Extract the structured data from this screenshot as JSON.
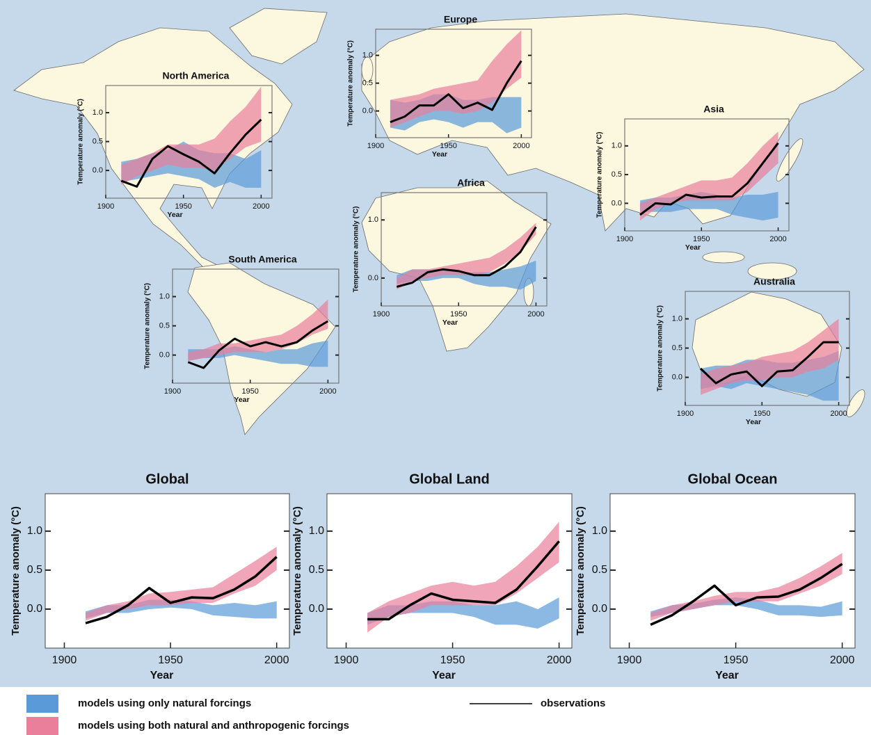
{
  "chart_data": [
    {
      "type": "line",
      "title": "North America",
      "ylabel": "Temperature anomaly (°C)",
      "xlabel": "Year",
      "x": [
        1910,
        1920,
        1930,
        1940,
        1950,
        1960,
        1970,
        1980,
        1990,
        2000
      ],
      "xlim": [
        1900,
        2007
      ],
      "ylim": [
        -0.48,
        1.47
      ],
      "xticks": [
        1900,
        1950,
        2000
      ],
      "yticks": [
        {
          "value": 0,
          "label": "0.0"
        },
        0.5,
        {
          "value": 1,
          "label": "1.0"
        }
      ],
      "observations": [
        -0.18,
        -0.28,
        0.2,
        0.42,
        0.28,
        0.15,
        -0.05,
        0.3,
        0.62,
        0.88
      ],
      "natural": {
        "low": [
          -0.2,
          -0.15,
          -0.1,
          -0.05,
          -0.1,
          -0.15,
          -0.3,
          -0.2,
          -0.3,
          -0.3
        ],
        "high": [
          0.15,
          0.2,
          0.3,
          0.35,
          0.5,
          0.35,
          0.3,
          0.3,
          0.2,
          0.35
        ]
      },
      "anthropogenic": {
        "low": [
          -0.25,
          -0.1,
          0.0,
          0.1,
          0.05,
          0.05,
          0.0,
          0.2,
          0.4,
          0.5
        ],
        "high": [
          0.1,
          0.2,
          0.3,
          0.45,
          0.45,
          0.45,
          0.55,
          0.85,
          1.1,
          1.45
        ]
      }
    },
    {
      "type": "line",
      "title": "Europe",
      "ylabel": "Temperature anomaly (°C)",
      "xlabel": "Year",
      "x": [
        1910,
        1920,
        1930,
        1940,
        1950,
        1960,
        1970,
        1980,
        1990,
        2000
      ],
      "xlim": [
        1900,
        2007
      ],
      "ylim": [
        -0.48,
        1.47
      ],
      "xticks": [
        1900,
        1950,
        2000
      ],
      "yticks": [
        {
          "value": 0,
          "label": "0.0"
        },
        0.5,
        {
          "value": 1,
          "label": "1.0"
        }
      ],
      "observations": [
        -0.2,
        -0.1,
        0.1,
        0.1,
        0.3,
        0.05,
        0.15,
        0.02,
        0.5,
        0.9
      ],
      "natural": {
        "low": [
          -0.3,
          -0.35,
          -0.2,
          -0.15,
          -0.2,
          -0.3,
          -0.2,
          -0.2,
          -0.4,
          -0.3
        ],
        "high": [
          0.2,
          0.15,
          0.2,
          0.3,
          0.3,
          0.2,
          0.2,
          0.25,
          0.25,
          0.25
        ]
      },
      "anthropogenic": {
        "low": [
          -0.3,
          -0.2,
          -0.1,
          0.0,
          0.0,
          -0.05,
          0.0,
          0.15,
          0.4,
          0.6
        ],
        "high": [
          0.2,
          0.25,
          0.3,
          0.4,
          0.45,
          0.5,
          0.55,
          0.9,
          1.2,
          1.45
        ]
      }
    },
    {
      "type": "line",
      "title": "Asia",
      "ylabel": "Temperature anomaly (°C)",
      "xlabel": "Year",
      "x": [
        1910,
        1920,
        1930,
        1940,
        1950,
        1960,
        1970,
        1980,
        1990,
        2000
      ],
      "xlim": [
        1900,
        2007
      ],
      "ylim": [
        -0.48,
        1.47
      ],
      "xticks": [
        1900,
        1950,
        2000
      ],
      "yticks": [
        {
          "value": 0,
          "label": "0.0"
        },
        0.5,
        {
          "value": 1,
          "label": "1.0"
        }
      ],
      "observations": [
        -0.2,
        0.0,
        -0.02,
        0.15,
        0.1,
        0.12,
        0.12,
        0.35,
        0.7,
        1.05
      ],
      "natural": {
        "low": [
          -0.15,
          -0.15,
          -0.15,
          -0.1,
          -0.1,
          -0.1,
          -0.2,
          -0.25,
          -0.3,
          -0.25
        ],
        "high": [
          0.05,
          0.1,
          0.1,
          0.15,
          0.2,
          0.15,
          0.1,
          0.15,
          0.15,
          0.2
        ]
      },
      "anthropogenic": {
        "low": [
          -0.3,
          -0.1,
          0.0,
          0.05,
          0.05,
          0.05,
          0.05,
          0.2,
          0.45,
          0.7
        ],
        "high": [
          0.0,
          0.1,
          0.2,
          0.3,
          0.4,
          0.4,
          0.45,
          0.7,
          1.0,
          1.25
        ]
      }
    },
    {
      "type": "line",
      "title": "Africa",
      "ylabel": "Temperature anomaly (°C)",
      "xlabel": "Year",
      "x": [
        1910,
        1920,
        1930,
        1940,
        1950,
        1960,
        1970,
        1980,
        1990,
        2000
      ],
      "xlim": [
        1900,
        2007
      ],
      "ylim": [
        -0.48,
        1.47
      ],
      "xticks": [
        1900,
        1950,
        2000
      ],
      "yticks": [
        {
          "value": 0,
          "label": "0.0"
        },
        {
          "value": 1,
          "label": "1.0"
        }
      ],
      "observations": [
        -0.15,
        -0.08,
        0.1,
        0.15,
        0.12,
        0.05,
        0.05,
        0.2,
        0.45,
        0.88
      ],
      "natural": {
        "low": [
          -0.1,
          -0.05,
          -0.05,
          0.0,
          0.0,
          -0.1,
          -0.15,
          -0.15,
          -0.2,
          -0.05
        ],
        "high": [
          0.05,
          0.15,
          0.15,
          0.15,
          0.1,
          0.1,
          0.1,
          0.15,
          0.2,
          0.3
        ]
      },
      "anthropogenic": {
        "low": [
          -0.2,
          -0.05,
          0.0,
          0.05,
          0.05,
          0.05,
          0.1,
          0.25,
          0.45,
          0.75
        ],
        "high": [
          0.0,
          0.15,
          0.15,
          0.2,
          0.25,
          0.3,
          0.35,
          0.5,
          0.7,
          0.95
        ]
      }
    },
    {
      "type": "line",
      "title": "South America",
      "ylabel": "Temperature anomaly (°C)",
      "xlabel": "Year",
      "x": [
        1910,
        1920,
        1930,
        1940,
        1950,
        1960,
        1970,
        1980,
        1990,
        2000
      ],
      "xlim": [
        1900,
        2007
      ],
      "ylim": [
        -0.48,
        1.47
      ],
      "xticks": [
        1900,
        1950,
        2000
      ],
      "yticks": [
        {
          "value": 0,
          "label": "0.0"
        },
        0.5,
        {
          "value": 1,
          "label": "1.0"
        }
      ],
      "observations": [
        -0.12,
        -0.22,
        0.08,
        0.28,
        0.15,
        0.22,
        0.15,
        0.22,
        0.42,
        0.58
      ],
      "natural": {
        "low": [
          -0.1,
          -0.05,
          -0.05,
          0.0,
          -0.05,
          -0.1,
          -0.15,
          -0.15,
          -0.2,
          -0.2
        ],
        "high": [
          0.1,
          0.1,
          0.1,
          0.15,
          0.1,
          0.05,
          0.1,
          0.1,
          0.2,
          0.25
        ]
      },
      "anthropogenic": {
        "low": [
          -0.1,
          -0.05,
          0.0,
          0.05,
          0.05,
          0.05,
          0.1,
          0.2,
          0.35,
          0.45
        ],
        "high": [
          0.05,
          0.1,
          0.2,
          0.2,
          0.25,
          0.3,
          0.35,
          0.5,
          0.7,
          0.95
        ]
      }
    },
    {
      "type": "line",
      "title": "Australia",
      "ylabel": "Temperature anomaly (°C)",
      "xlabel": "Year",
      "x": [
        1910,
        1920,
        1930,
        1940,
        1950,
        1960,
        1970,
        1980,
        1990,
        2000
      ],
      "xlim": [
        1900,
        2007
      ],
      "ylim": [
        -0.48,
        1.47
      ],
      "xticks": [
        1900,
        1950,
        2000
      ],
      "yticks": [
        {
          "value": 0,
          "label": "0.0"
        },
        0.5,
        {
          "value": 1,
          "label": "1.0"
        }
      ],
      "observations": [
        0.15,
        -0.1,
        0.05,
        0.1,
        -0.15,
        0.1,
        0.12,
        0.35,
        0.6,
        0.6
      ],
      "natural": {
        "low": [
          -0.2,
          -0.15,
          -0.2,
          -0.1,
          -0.15,
          -0.2,
          -0.25,
          -0.3,
          -0.4,
          -0.4
        ],
        "high": [
          0.15,
          0.2,
          0.2,
          0.3,
          0.3,
          0.25,
          0.25,
          0.3,
          0.35,
          0.45
        ]
      },
      "anthropogenic": {
        "low": [
          -0.3,
          -0.2,
          -0.1,
          -0.05,
          -0.05,
          0.0,
          0.0,
          0.1,
          0.15,
          0.3
        ],
        "high": [
          0.05,
          0.15,
          0.2,
          0.25,
          0.35,
          0.4,
          0.45,
          0.6,
          0.8,
          1.0
        ]
      }
    },
    {
      "type": "line",
      "title": "Global",
      "ylabel": "Temperature anomaly (°C)",
      "xlabel": "Year",
      "x": [
        1910,
        1920,
        1930,
        1940,
        1950,
        1960,
        1970,
        1980,
        1990,
        2000
      ],
      "xlim": [
        1891,
        2006
      ],
      "ylim": [
        -0.5,
        1.48
      ],
      "xticks": [
        1900,
        1950,
        2000
      ],
      "yticks": [
        {
          "value": 0,
          "label": "0.0"
        },
        0.5,
        {
          "value": 1,
          "label": "1.0"
        }
      ],
      "observations": [
        -0.18,
        -0.1,
        0.05,
        0.27,
        0.08,
        0.15,
        0.14,
        0.25,
        0.42,
        0.67
      ],
      "natural": {
        "low": [
          -0.12,
          -0.05,
          -0.05,
          0.0,
          0.02,
          0.0,
          -0.08,
          -0.1,
          -0.12,
          -0.12
        ],
        "high": [
          -0.03,
          0.05,
          0.05,
          0.12,
          0.12,
          0.1,
          0.05,
          0.08,
          0.05,
          0.1
        ]
      },
      "anthropogenic": {
        "low": [
          -0.15,
          -0.05,
          0.0,
          0.05,
          0.05,
          0.08,
          0.08,
          0.2,
          0.3,
          0.5
        ],
        "high": [
          -0.05,
          0.05,
          0.1,
          0.2,
          0.22,
          0.25,
          0.28,
          0.45,
          0.62,
          0.8
        ]
      }
    },
    {
      "type": "line",
      "title": "Global Land",
      "ylabel": "Temperature anomaly (°C)",
      "xlabel": "Year",
      "x": [
        1910,
        1920,
        1930,
        1940,
        1950,
        1960,
        1970,
        1980,
        1990,
        2000
      ],
      "xlim": [
        1891,
        2006
      ],
      "ylim": [
        -0.5,
        1.48
      ],
      "xticks": [
        1900,
        1950,
        2000
      ],
      "yticks": [
        {
          "value": 0,
          "label": "0.0"
        },
        0.5,
        {
          "value": 1,
          "label": "1.0"
        }
      ],
      "observations": [
        -0.13,
        -0.13,
        0.05,
        0.2,
        0.12,
        0.1,
        0.08,
        0.25,
        0.55,
        0.87
      ],
      "natural": {
        "low": [
          -0.2,
          -0.1,
          -0.05,
          -0.05,
          -0.05,
          -0.1,
          -0.2,
          -0.2,
          -0.25,
          -0.12
        ],
        "high": [
          -0.05,
          0.05,
          0.05,
          0.1,
          0.1,
          0.05,
          0.05,
          0.1,
          0.0,
          0.15
        ]
      },
      "anthropogenic": {
        "low": [
          -0.3,
          -0.1,
          -0.05,
          0.05,
          0.05,
          0.05,
          0.05,
          0.2,
          0.4,
          0.6
        ],
        "high": [
          -0.05,
          0.1,
          0.2,
          0.3,
          0.35,
          0.3,
          0.35,
          0.55,
          0.8,
          1.12
        ]
      }
    },
    {
      "type": "line",
      "title": "Global Ocean",
      "ylabel": "Temperature anomaly (°C)",
      "xlabel": "Year",
      "x": [
        1910,
        1920,
        1930,
        1940,
        1950,
        1960,
        1970,
        1980,
        1990,
        2000
      ],
      "xlim": [
        1891,
        2006
      ],
      "ylim": [
        -0.5,
        1.48
      ],
      "xticks": [
        1900,
        1950,
        2000
      ],
      "yticks": [
        {
          "value": 0,
          "label": "0.0"
        },
        0.5,
        {
          "value": 1,
          "label": "1.0"
        }
      ],
      "observations": [
        -0.2,
        -0.08,
        0.1,
        0.3,
        0.05,
        0.15,
        0.16,
        0.25,
        0.4,
        0.58
      ],
      "natural": {
        "low": [
          -0.1,
          -0.05,
          0.0,
          0.05,
          0.05,
          0.0,
          -0.08,
          -0.08,
          -0.1,
          -0.08
        ],
        "high": [
          -0.03,
          0.05,
          0.07,
          0.12,
          0.15,
          0.12,
          0.05,
          0.05,
          0.03,
          0.1
        ]
      },
      "anthropogenic": {
        "low": [
          -0.15,
          -0.05,
          0.0,
          0.05,
          0.1,
          0.1,
          0.1,
          0.2,
          0.3,
          0.45
        ],
        "high": [
          -0.05,
          0.05,
          0.1,
          0.17,
          0.22,
          0.22,
          0.28,
          0.4,
          0.55,
          0.72
        ]
      }
    }
  ],
  "legend": {
    "natural": {
      "label": "models using only natural forcings",
      "color": "#5b9ad8"
    },
    "anthropogenic": {
      "label": "models using both natural and anthropogenic forcings",
      "color": "#ea7f9b"
    },
    "observations": {
      "label": "observations",
      "color": "#000000"
    }
  }
}
